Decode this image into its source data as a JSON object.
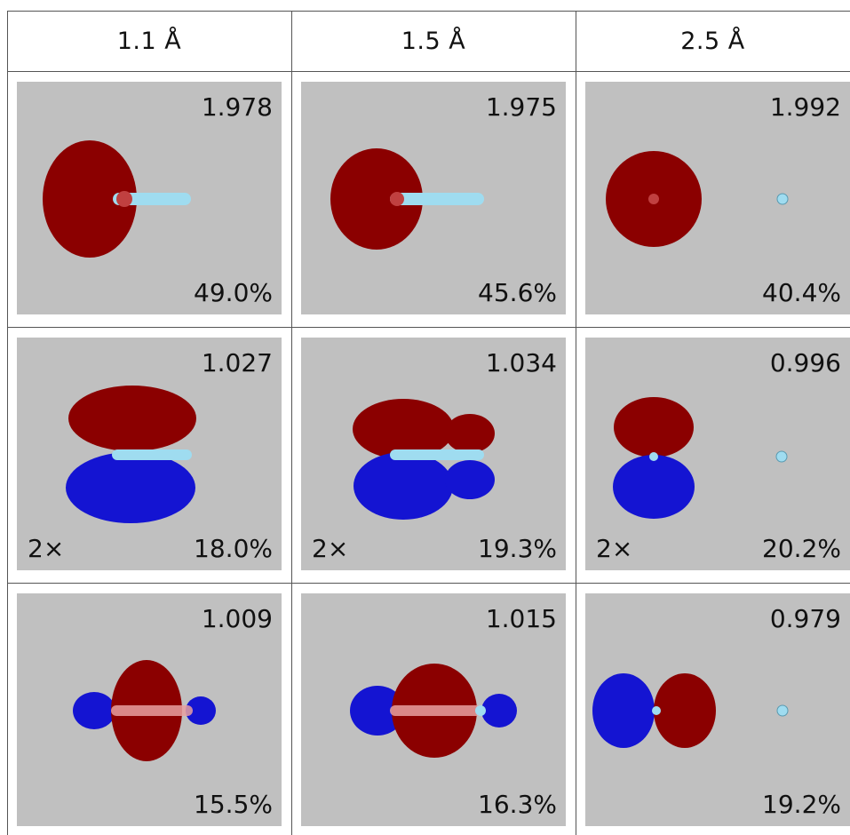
{
  "headers": [
    "1.1 Å",
    "1.5 Å",
    "2.5 Å"
  ],
  "rows": [
    {
      "cells": [
        {
          "occupation": "1.978",
          "percent": "49.0%",
          "multiplicity": ""
        },
        {
          "occupation": "1.975",
          "percent": "45.6%",
          "multiplicity": ""
        },
        {
          "occupation": "1.992",
          "percent": "40.4%",
          "multiplicity": ""
        }
      ]
    },
    {
      "cells": [
        {
          "occupation": "1.027",
          "percent": "18.0%",
          "multiplicity": "2×"
        },
        {
          "occupation": "1.034",
          "percent": "19.3%",
          "multiplicity": "2×"
        },
        {
          "occupation": "0.996",
          "percent": "20.2%",
          "multiplicity": "2×"
        }
      ]
    },
    {
      "cells": [
        {
          "occupation": "1.009",
          "percent": "15.5%",
          "multiplicity": ""
        },
        {
          "occupation": "1.015",
          "percent": "16.3%",
          "multiplicity": ""
        },
        {
          "occupation": "0.979",
          "percent": "19.2%",
          "multiplicity": ""
        }
      ]
    }
  ],
  "colors": {
    "positive_lobe": "#8b0000",
    "negative_lobe": "#1414d2",
    "bond": "#9fdcf0",
    "panel_background": "#c0c0c0"
  }
}
